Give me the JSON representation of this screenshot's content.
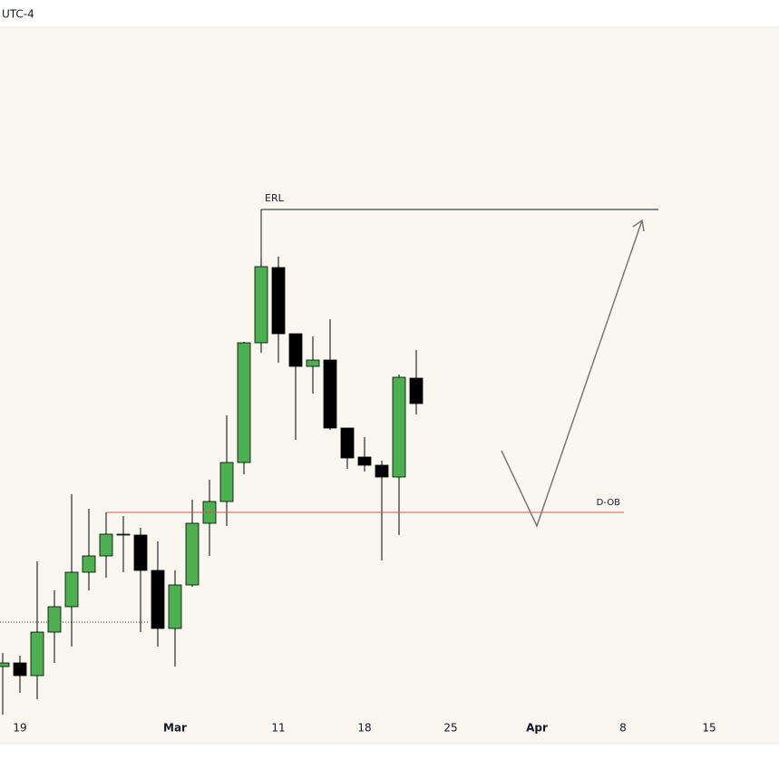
{
  "timezone": "UTC-4",
  "chart_data": {
    "type": "candlestick",
    "categories": [
      null,
      "19",
      null,
      null,
      null,
      null,
      null,
      null,
      null,
      null,
      "Mar",
      null,
      null,
      null,
      null,
      null,
      "11",
      null,
      null,
      null,
      null,
      "18",
      null,
      null,
      null,
      null,
      "25",
      null,
      null,
      null,
      null,
      "Apr",
      null,
      null,
      null,
      null,
      "8",
      null,
      null,
      null,
      null,
      "15",
      null,
      null,
      null
    ],
    "open": [
      8.5,
      8.9,
      7.5,
      12.3,
      15.1,
      18.9,
      20.7,
      23.0,
      23.0,
      19.1,
      12.7,
      17.5,
      24.3,
      26.7,
      31.0,
      44.2,
      52.5,
      45.2,
      41.6,
      42.3,
      34.8,
      31.6,
      30.7,
      29.4,
      40.3,
      null,
      null,
      null,
      null,
      null,
      null,
      null,
      null,
      null,
      null,
      null,
      null,
      null,
      null,
      null,
      null,
      null,
      null,
      null,
      null
    ],
    "high": [
      10.0,
      9.7,
      20.1,
      16.9,
      27.5,
      25.9,
      25.5,
      25.1,
      23.8,
      22.3,
      19.1,
      26.9,
      29.1,
      36.2,
      44.3,
      53.7,
      53.7,
      45.2,
      44.9,
      46.8,
      34.8,
      33.8,
      31.2,
      40.7,
      43.4,
      null,
      null,
      null,
      null,
      null,
      null,
      null,
      null,
      null,
      null,
      null,
      null,
      null,
      null,
      null,
      null,
      null,
      null,
      null,
      null
    ],
    "low": [
      3.2,
      5.6,
      4.9,
      8.9,
      10.7,
      16.9,
      18.3,
      18.9,
      12.3,
      10.7,
      8.5,
      17.3,
      20.7,
      24.0,
      29.7,
      43.1,
      42.0,
      33.5,
      38.6,
      34.6,
      30.3,
      30.0,
      20.2,
      23.0,
      36.3,
      null,
      null,
      null,
      null,
      null,
      null,
      null,
      null,
      null,
      null,
      null,
      null,
      null,
      null,
      null,
      null,
      null,
      null,
      null,
      null
    ],
    "close": [
      8.9,
      7.5,
      12.3,
      15.1,
      18.9,
      20.7,
      23.1,
      23.1,
      19.1,
      12.7,
      17.5,
      24.3,
      26.7,
      31.0,
      44.2,
      52.6,
      45.2,
      41.6,
      42.3,
      34.8,
      31.5,
      30.7,
      29.4,
      40.4,
      37.5,
      null,
      null,
      null,
      null,
      null,
      null,
      null,
      null,
      null,
      null,
      null,
      null,
      null,
      null,
      null,
      null,
      null,
      null,
      null,
      null
    ],
    "up_color": "#4caf50",
    "down_color": "#000000",
    "ylim": [
      0,
      79
    ],
    "price_line": 13.4,
    "annotations": [
      {
        "text": "ERL",
        "y": 58.9,
        "color": "#131722"
      },
      {
        "text": "D-OB",
        "y": 25.5,
        "color": "#e05050"
      }
    ]
  }
}
